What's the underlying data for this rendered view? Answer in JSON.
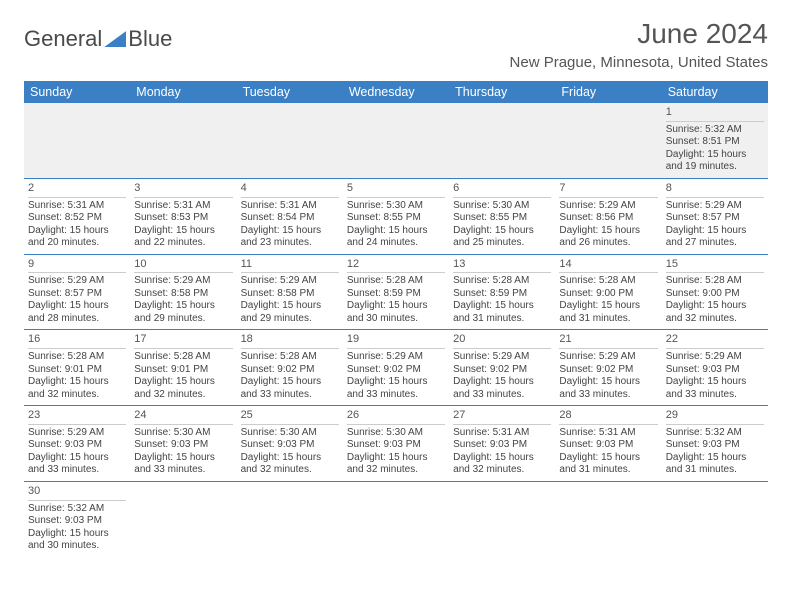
{
  "logo": {
    "text1": "General",
    "text2": "Blue"
  },
  "header": {
    "title": "June 2024",
    "location": "New Prague, Minnesota, United States"
  },
  "colors": {
    "accent": "#3b7fc4",
    "text": "#555555",
    "cell_border": "#cccccc",
    "firstrow_bg": "#f0f0f0"
  },
  "weekdays": [
    "Sunday",
    "Monday",
    "Tuesday",
    "Wednesday",
    "Thursday",
    "Friday",
    "Saturday"
  ],
  "weeks": [
    [
      null,
      null,
      null,
      null,
      null,
      null,
      {
        "n": "1",
        "sr": "5:32 AM",
        "ss": "8:51 PM",
        "dl": "15 hours and 19 minutes."
      }
    ],
    [
      {
        "n": "2",
        "sr": "5:31 AM",
        "ss": "8:52 PM",
        "dl": "15 hours and 20 minutes."
      },
      {
        "n": "3",
        "sr": "5:31 AM",
        "ss": "8:53 PM",
        "dl": "15 hours and 22 minutes."
      },
      {
        "n": "4",
        "sr": "5:31 AM",
        "ss": "8:54 PM",
        "dl": "15 hours and 23 minutes."
      },
      {
        "n": "5",
        "sr": "5:30 AM",
        "ss": "8:55 PM",
        "dl": "15 hours and 24 minutes."
      },
      {
        "n": "6",
        "sr": "5:30 AM",
        "ss": "8:55 PM",
        "dl": "15 hours and 25 minutes."
      },
      {
        "n": "7",
        "sr": "5:29 AM",
        "ss": "8:56 PM",
        "dl": "15 hours and 26 minutes."
      },
      {
        "n": "8",
        "sr": "5:29 AM",
        "ss": "8:57 PM",
        "dl": "15 hours and 27 minutes."
      }
    ],
    [
      {
        "n": "9",
        "sr": "5:29 AM",
        "ss": "8:57 PM",
        "dl": "15 hours and 28 minutes."
      },
      {
        "n": "10",
        "sr": "5:29 AM",
        "ss": "8:58 PM",
        "dl": "15 hours and 29 minutes."
      },
      {
        "n": "11",
        "sr": "5:29 AM",
        "ss": "8:58 PM",
        "dl": "15 hours and 29 minutes."
      },
      {
        "n": "12",
        "sr": "5:28 AM",
        "ss": "8:59 PM",
        "dl": "15 hours and 30 minutes."
      },
      {
        "n": "13",
        "sr": "5:28 AM",
        "ss": "8:59 PM",
        "dl": "15 hours and 31 minutes."
      },
      {
        "n": "14",
        "sr": "5:28 AM",
        "ss": "9:00 PM",
        "dl": "15 hours and 31 minutes."
      },
      {
        "n": "15",
        "sr": "5:28 AM",
        "ss": "9:00 PM",
        "dl": "15 hours and 32 minutes."
      }
    ],
    [
      {
        "n": "16",
        "sr": "5:28 AM",
        "ss": "9:01 PM",
        "dl": "15 hours and 32 minutes."
      },
      {
        "n": "17",
        "sr": "5:28 AM",
        "ss": "9:01 PM",
        "dl": "15 hours and 32 minutes."
      },
      {
        "n": "18",
        "sr": "5:28 AM",
        "ss": "9:02 PM",
        "dl": "15 hours and 33 minutes."
      },
      {
        "n": "19",
        "sr": "5:29 AM",
        "ss": "9:02 PM",
        "dl": "15 hours and 33 minutes."
      },
      {
        "n": "20",
        "sr": "5:29 AM",
        "ss": "9:02 PM",
        "dl": "15 hours and 33 minutes."
      },
      {
        "n": "21",
        "sr": "5:29 AM",
        "ss": "9:02 PM",
        "dl": "15 hours and 33 minutes."
      },
      {
        "n": "22",
        "sr": "5:29 AM",
        "ss": "9:03 PM",
        "dl": "15 hours and 33 minutes."
      }
    ],
    [
      {
        "n": "23",
        "sr": "5:29 AM",
        "ss": "9:03 PM",
        "dl": "15 hours and 33 minutes."
      },
      {
        "n": "24",
        "sr": "5:30 AM",
        "ss": "9:03 PM",
        "dl": "15 hours and 33 minutes."
      },
      {
        "n": "25",
        "sr": "5:30 AM",
        "ss": "9:03 PM",
        "dl": "15 hours and 32 minutes."
      },
      {
        "n": "26",
        "sr": "5:30 AM",
        "ss": "9:03 PM",
        "dl": "15 hours and 32 minutes."
      },
      {
        "n": "27",
        "sr": "5:31 AM",
        "ss": "9:03 PM",
        "dl": "15 hours and 32 minutes."
      },
      {
        "n": "28",
        "sr": "5:31 AM",
        "ss": "9:03 PM",
        "dl": "15 hours and 31 minutes."
      },
      {
        "n": "29",
        "sr": "5:32 AM",
        "ss": "9:03 PM",
        "dl": "15 hours and 31 minutes."
      }
    ],
    [
      {
        "n": "30",
        "sr": "5:32 AM",
        "ss": "9:03 PM",
        "dl": "15 hours and 30 minutes."
      },
      null,
      null,
      null,
      null,
      null,
      null
    ]
  ],
  "labels": {
    "sunrise": "Sunrise:",
    "sunset": "Sunset:",
    "daylight": "Daylight:"
  }
}
